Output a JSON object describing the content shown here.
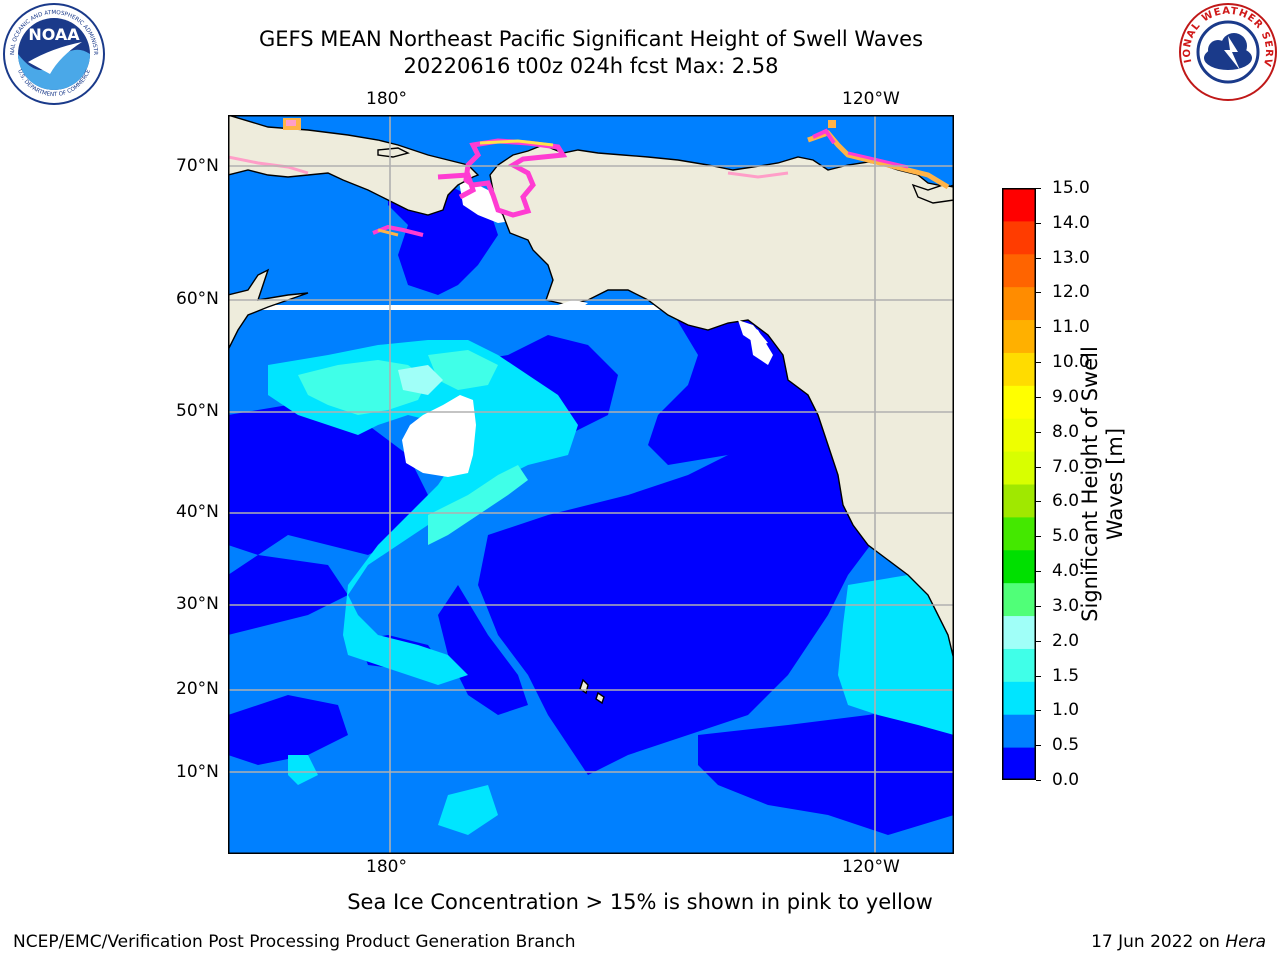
{
  "header": {
    "title_line1": "GEFS MEAN Northeast Pacific Significant Height of Swell Waves",
    "title_line2": "20220616 t00z 024h fcst   Max: 2.58"
  },
  "logos": {
    "noaa": {
      "text": "NOAA",
      "ring_top": "NATIONAL OCEANIC AND ATMOSPHERIC ADMINISTRATION",
      "ring_bottom": "U.S. DEPARTMENT OF COMMERCE"
    },
    "nws": {
      "ring": "NATIONAL WEATHER SERVICE"
    }
  },
  "map": {
    "lon_labels_top": [
      "180°",
      "120°W"
    ],
    "lon_labels_bottom": [
      "180°",
      "120°W"
    ],
    "lat_labels": [
      "70°N",
      "60°N",
      "50°N",
      "40°N",
      "30°N",
      "20°N",
      "10°N"
    ],
    "land_color": "#eeecdc",
    "grid_color": "#b0b0b0",
    "ice_colors": [
      "#ff3cd2",
      "#ff9ec8",
      "#ffb347",
      "#ffe24a"
    ]
  },
  "colorbar": {
    "label": "Significant Height of Swell Waves [m]",
    "ticks": [
      "15.0",
      "14.0",
      "13.0",
      "12.0",
      "11.0",
      "10.0",
      "9.0",
      "8.0",
      "7.0",
      "6.0",
      "5.0",
      "4.0",
      "3.0",
      "2.0",
      "1.5",
      "1.0",
      "0.5",
      "0.0"
    ],
    "colors_bottom_to_top": [
      "#0000ff",
      "#0080ff",
      "#00e5ff",
      "#40ffe8",
      "#a0fff8",
      "#50ff78",
      "#00e000",
      "#44e800",
      "#a0e800",
      "#d8ff00",
      "#eeff00",
      "#ffff00",
      "#ffdc00",
      "#ffb000",
      "#ff8c00",
      "#ff6400",
      "#ff3c00",
      "#ff0000"
    ]
  },
  "footer": {
    "note": "Sea Ice Concentration > 15% is shown in pink to yellow",
    "left": "NCEP/EMC/Verification Post Processing Product Generation Branch",
    "right_date": "17 Jun 2022 on ",
    "right_host": "Hera"
  }
}
